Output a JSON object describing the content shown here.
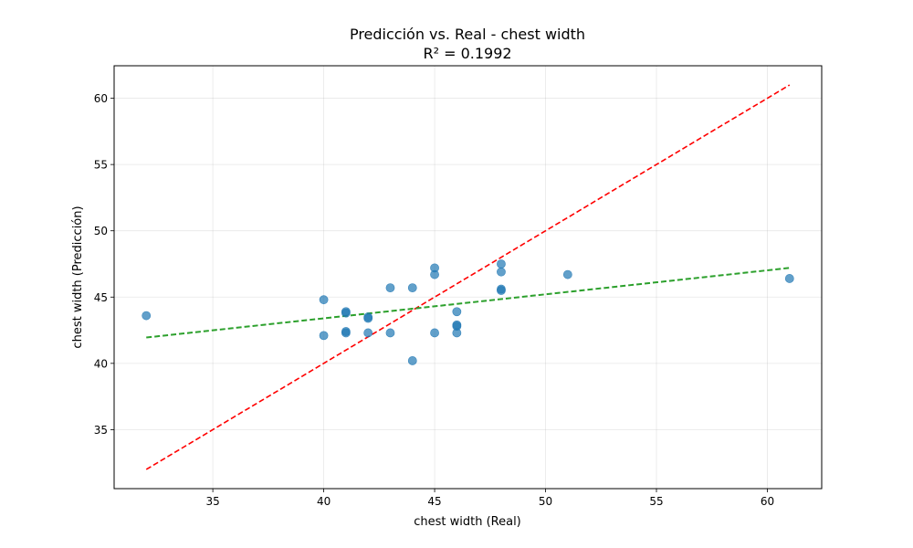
{
  "chart_data": {
    "type": "scatter",
    "title": "Predicción vs. Real - chest width",
    "subtitle": "R² = 0.1992",
    "xlabel": "chest width (Real)",
    "ylabel": "chest width (Predicción)",
    "xlim": [
      30.55,
      62.45
    ],
    "ylim": [
      30.55,
      62.45
    ],
    "xticks": [
      35,
      40,
      45,
      50,
      55,
      60
    ],
    "yticks": [
      35,
      40,
      45,
      50,
      55,
      60
    ],
    "grid": true,
    "points": [
      {
        "x": 32,
        "y": 43.6
      },
      {
        "x": 40,
        "y": 44.8
      },
      {
        "x": 40,
        "y": 42.1
      },
      {
        "x": 41,
        "y": 43.9
      },
      {
        "x": 41,
        "y": 43.8
      },
      {
        "x": 41,
        "y": 42.4
      },
      {
        "x": 41,
        "y": 42.3
      },
      {
        "x": 42,
        "y": 43.5
      },
      {
        "x": 42,
        "y": 43.4
      },
      {
        "x": 42,
        "y": 42.3
      },
      {
        "x": 43,
        "y": 45.7
      },
      {
        "x": 43,
        "y": 42.3
      },
      {
        "x": 44,
        "y": 45.7
      },
      {
        "x": 44,
        "y": 40.2
      },
      {
        "x": 45,
        "y": 47.2
      },
      {
        "x": 45,
        "y": 46.7
      },
      {
        "x": 45,
        "y": 42.3
      },
      {
        "x": 46,
        "y": 43.9
      },
      {
        "x": 46,
        "y": 42.9
      },
      {
        "x": 46,
        "y": 42.8
      },
      {
        "x": 46,
        "y": 42.3
      },
      {
        "x": 48,
        "y": 47.5
      },
      {
        "x": 48,
        "y": 46.9
      },
      {
        "x": 48,
        "y": 45.6
      },
      {
        "x": 48,
        "y": 45.5
      },
      {
        "x": 51,
        "y": 46.7
      },
      {
        "x": 61,
        "y": 46.4
      }
    ],
    "reference_line": {
      "x": [
        32,
        61
      ],
      "y": [
        32,
        61
      ],
      "color": "#ff0000",
      "style": "dashed"
    },
    "fit_line": {
      "x": [
        32,
        61
      ],
      "y": [
        41.95,
        47.2
      ],
      "color": "#2ca02c",
      "style": "dashed"
    },
    "point_color": "#1f77b4"
  }
}
